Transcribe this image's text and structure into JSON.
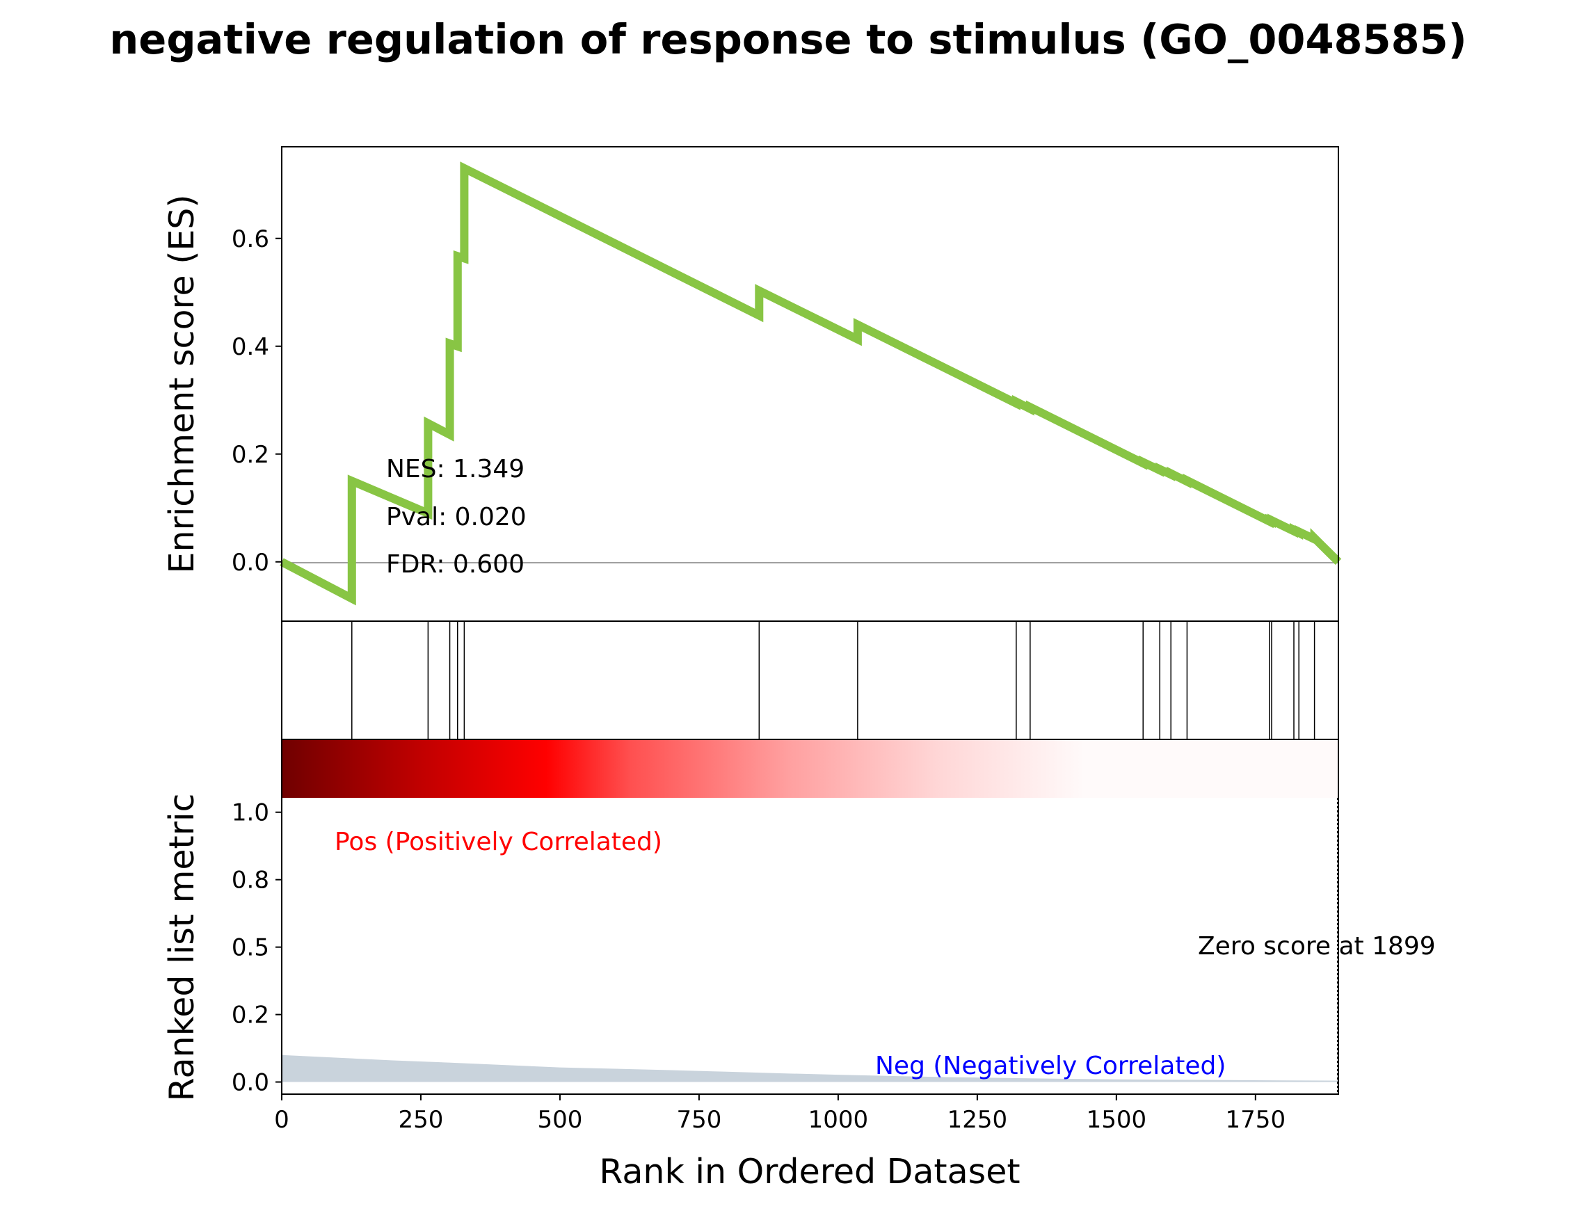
{
  "chart_data": {
    "type": "line",
    "title": "negative regulation of response to stimulus (GO_0048585)",
    "xlabel": "Rank in Ordered Dataset",
    "xlim": [
      0,
      1899
    ],
    "x_ticks": [
      "0",
      "250",
      "500",
      "750",
      "1000",
      "1250",
      "1500",
      "1750"
    ],
    "es_panel": {
      "ylabel": "Enrichment score (ES)",
      "ylim": [
        -0.11,
        0.77
      ],
      "y_ticks": [
        "0.0",
        "0.2",
        "0.4",
        "0.6"
      ],
      "line_color": "#88c544",
      "es_curve": {
        "x": [
          0,
          126,
          126,
          263,
          263,
          302,
          302,
          316,
          316,
          328,
          328,
          858,
          858,
          1035,
          1035,
          1320,
          1320,
          1345,
          1345,
          1548,
          1548,
          1578,
          1578,
          1598,
          1598,
          1627,
          1627,
          1775,
          1775,
          1779,
          1779,
          1819,
          1819,
          1828,
          1828,
          1856,
          1856,
          1899
        ],
        "y": [
          0.0,
          -0.068,
          0.15,
          0.09,
          0.257,
          0.236,
          0.405,
          0.4,
          0.567,
          0.563,
          0.73,
          0.457,
          0.503,
          0.413,
          0.44,
          0.294,
          0.297,
          0.284,
          0.287,
          0.183,
          0.185,
          0.17,
          0.172,
          0.162,
          0.164,
          0.149,
          0.151,
          0.075,
          0.077,
          0.075,
          0.077,
          0.057,
          0.059,
          0.054,
          0.056,
          0.042,
          0.044,
          0.0
        ]
      }
    },
    "hit_positions": [
      126,
      263,
      302,
      316,
      328,
      858,
      1035,
      1320,
      1345,
      1548,
      1578,
      1598,
      1627,
      1775,
      1779,
      1819,
      1828,
      1856
    ],
    "stats": {
      "nes": "NES: 1.349",
      "pval": "Pval: 0.020",
      "fdr": "FDR: 0.600"
    },
    "metric_panel": {
      "ylabel": "Ranked list metric",
      "ylim": [
        -0.045,
        1.27
      ],
      "y_ticks": [
        {
          "value": 0.0,
          "label": "0.0"
        },
        {
          "value": 0.25,
          "label": "0.2"
        },
        {
          "value": 0.5,
          "label": "0.5"
        },
        {
          "value": 0.75,
          "label": "0.8"
        },
        {
          "value": 1.0,
          "label": "1.0"
        }
      ],
      "fill_color": "#c9d3dc",
      "metric": {
        "x": [
          0,
          100,
          200,
          300,
          400,
          500,
          600,
          700,
          800,
          900,
          1000,
          1100,
          1200,
          1300,
          1400,
          1500,
          1600,
          1700,
          1800,
          1899
        ],
        "y": [
          0.1,
          0.09,
          0.08,
          0.072,
          0.063,
          0.054,
          0.049,
          0.044,
          0.038,
          0.032,
          0.027,
          0.022,
          0.018,
          0.015,
          0.012,
          0.01,
          0.008,
          0.007,
          0.006,
          0.005
        ]
      },
      "pos_label": "Pos (Positively Correlated)",
      "neg_label": "Neg (Negatively Correlated)",
      "zero_label": "Zero score at 1899",
      "zero_at": 1899,
      "pos_color": "#ff0000",
      "neg_color": "#0000ff"
    },
    "heatmap": {
      "colors": [
        "#800000",
        "#c00000",
        "#ff0000",
        "#ff8080",
        "#ffd0d0",
        "#ffffff"
      ]
    }
  }
}
